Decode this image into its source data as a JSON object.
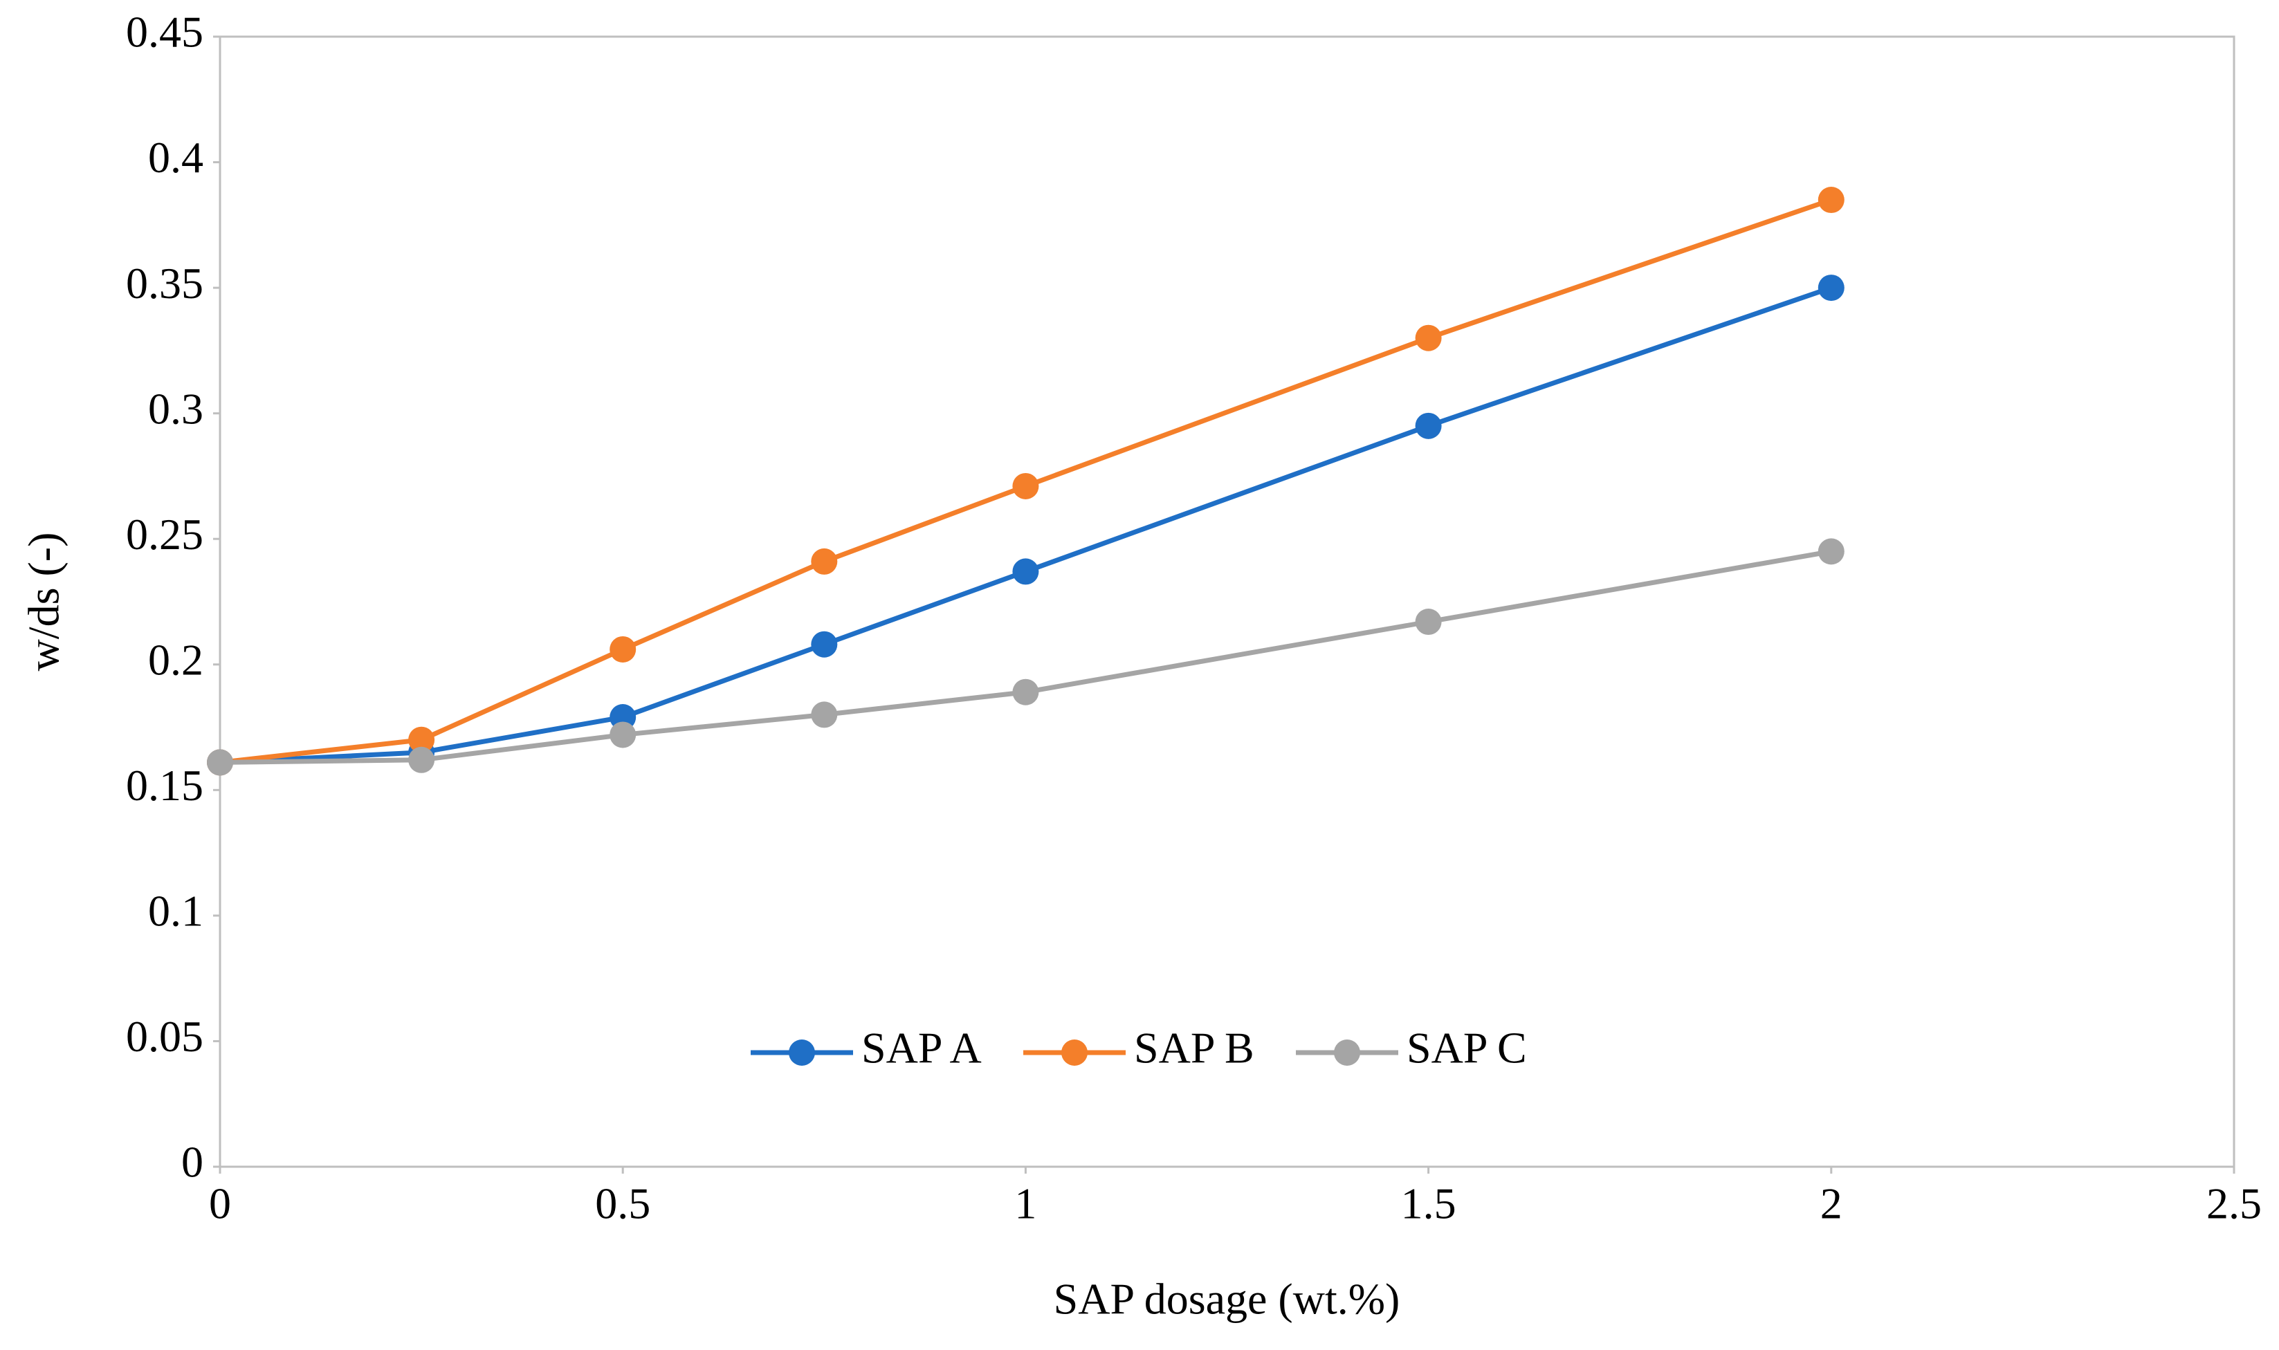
{
  "chart_data": {
    "type": "line",
    "x_label": "SAP dosage (wt.%)",
    "y_label": "w/ds (-)",
    "x": [
      0,
      0.25,
      0.5,
      0.75,
      1,
      1.5,
      2
    ],
    "series": [
      {
        "name": "SAP A",
        "color": "#1f6fc6",
        "values": [
          0.161,
          0.165,
          0.179,
          0.208,
          0.237,
          0.295,
          0.35
        ]
      },
      {
        "name": "SAP B",
        "color": "#f47f2a",
        "values": [
          0.161,
          0.17,
          0.206,
          0.241,
          0.271,
          0.33,
          0.385
        ]
      },
      {
        "name": "SAP C",
        "color": "#a5a5a5",
        "values": [
          0.161,
          0.162,
          0.172,
          0.18,
          0.189,
          0.217,
          0.245
        ]
      }
    ],
    "xlim": [
      0,
      2.5
    ],
    "xticks": [
      0,
      0.5,
      1,
      1.5,
      2,
      2.5
    ],
    "ylim": [
      0,
      0.45
    ],
    "yticks": [
      0,
      0.05,
      0.1,
      0.15,
      0.2,
      0.25,
      0.3,
      0.35,
      0.4,
      0.45
    ],
    "grid": false,
    "legend": "bottom"
  }
}
